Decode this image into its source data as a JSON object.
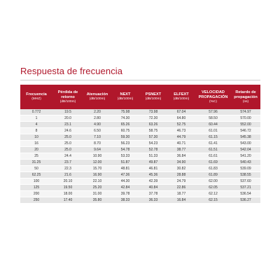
{
  "title": "Respuesta de frecuencia",
  "columns": [
    {
      "label": "Frecuencia",
      "unit": "(MHZ)"
    },
    {
      "label": "Pérdida de retorno",
      "unit": "(dB/100m)"
    },
    {
      "label": "Atenuación",
      "unit": "(dB/100m)"
    },
    {
      "label": "NEXT",
      "unit": "(dB/100m)"
    },
    {
      "label": "PSNEXT",
      "unit": "(dB/100m)"
    },
    {
      "label": "ELFEXT",
      "unit": "(dB/100m)"
    },
    {
      "label": "VELOCIDAD PROPAGACIÓN",
      "unit": "(%C)"
    },
    {
      "label": "Retardo de propagación",
      "unit": "(ns)"
    }
  ],
  "rows": [
    [
      "0.772",
      "19.5",
      "2.20",
      "75.98",
      "73.98",
      "67.04",
      "57.96",
      "574.97"
    ],
    [
      "1",
      "20.0",
      "2.80",
      "74.30",
      "72.30",
      "64.80",
      "58.50",
      "570.00"
    ],
    [
      "4",
      "23.1",
      "4.90",
      "65.26",
      "63.26",
      "52.75",
      "60.44",
      "552.00"
    ],
    [
      "8",
      "24.6",
      "6.50",
      "60.75",
      "58.75",
      "46.73",
      "61.01",
      "546.72"
    ],
    [
      "10",
      "25.0",
      "7.10",
      "59.30",
      "57.30",
      "44.79",
      "61.15",
      "545.38"
    ],
    [
      "16",
      "25.0",
      "8.70",
      "56.23",
      "54.23",
      "40.71",
      "61.41",
      "543.00"
    ],
    [
      "20",
      "25.0",
      "9.64",
      "54.78",
      "52.78",
      "38.77",
      "61.51",
      "542.04"
    ],
    [
      "25",
      "24.4",
      "10.90",
      "53.33",
      "51.33",
      "36.84",
      "61.61",
      "541.20"
    ],
    [
      "31.25",
      "23.7",
      "12.00",
      "51.87",
      "49.87",
      "34.90",
      "61.69",
      "540.43"
    ],
    [
      "50",
      "22.3",
      "15.70",
      "48.81",
      "46.81",
      "30.82",
      "61.83",
      "539.09"
    ],
    [
      "62.25",
      "21.6",
      "16.90",
      "47.36",
      "45.36",
      "28.88",
      "61.89",
      "538.55"
    ],
    [
      "100",
      "20.10",
      "22.10",
      "44.30",
      "42.39",
      "24.79",
      "62.00",
      "537.60"
    ],
    [
      "125",
      "19.50",
      "25.20",
      "42.84",
      "40.84",
      "22.86",
      "62.05",
      "537.21"
    ],
    [
      "200",
      "18.00",
      "31.00",
      "39.78",
      "37.78",
      "18.77",
      "62.12",
      "536.54"
    ],
    [
      "250",
      "17.40",
      "35.80",
      "38.33",
      "36.33",
      "16.84",
      "62.15",
      "536.27"
    ]
  ]
}
